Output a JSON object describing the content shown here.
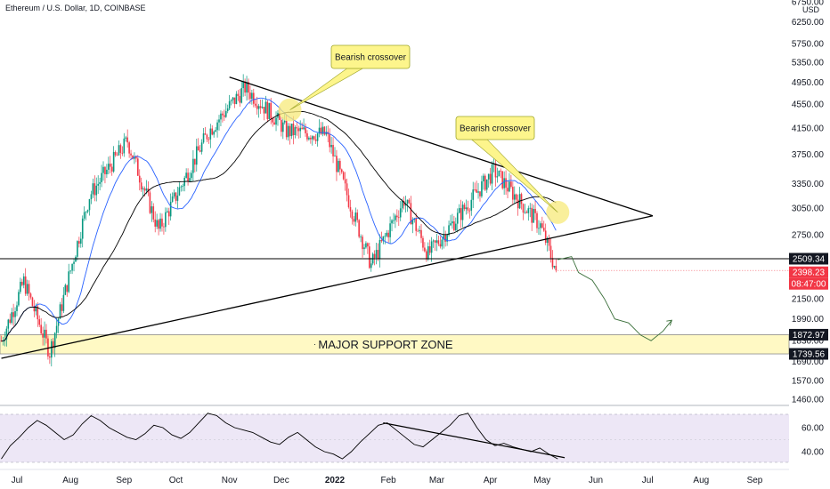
{
  "header": {
    "symbol_title": "Ethereum / U.S. Dollar, 1D, COINBASE"
  },
  "chart_data": {
    "type": "candlestick",
    "title": "Ethereum / U.S. Dollar, 1D, COINBASE",
    "y_unit": "USD",
    "y_axis_ticks": [
      6750,
      6250,
      5750,
      5350,
      4950,
      4550,
      4150,
      3750,
      3350,
      3050,
      2750,
      2509.34,
      2150,
      1990,
      1830,
      1690,
      1570,
      1460
    ],
    "x_axis_labels": [
      "Jul",
      "Aug",
      "Sep",
      "Oct",
      "Nov",
      "Dec",
      "2022",
      "Feb",
      "Mar",
      "Apr",
      "May",
      "Jun",
      "Jul",
      "Aug",
      "Sep"
    ],
    "price_path_approx": [
      {
        "date": "2021-06-22",
        "price": 1830
      },
      {
        "date": "2021-07-05",
        "price": 2300
      },
      {
        "date": "2021-07-20",
        "price": 1750
      },
      {
        "date": "2021-08-12",
        "price": 3200
      },
      {
        "date": "2021-09-03",
        "price": 3950
      },
      {
        "date": "2021-09-21",
        "price": 2800
      },
      {
        "date": "2021-10-20",
        "price": 4100
      },
      {
        "date": "2021-11-10",
        "price": 4850
      },
      {
        "date": "2021-11-28",
        "price": 4300
      },
      {
        "date": "2021-12-04",
        "price": 4100
      },
      {
        "date": "2021-12-27",
        "price": 4050
      },
      {
        "date": "2022-01-22",
        "price": 2450
      },
      {
        "date": "2022-02-10",
        "price": 3150
      },
      {
        "date": "2022-02-24",
        "price": 2550
      },
      {
        "date": "2022-04-03",
        "price": 3520
      },
      {
        "date": "2022-04-30",
        "price": 2850
      },
      {
        "date": "2022-05-09",
        "price": 2398.23
      }
    ],
    "price_labels": [
      {
        "text": "2509.34",
        "color": "#131722"
      },
      {
        "text": "2398.23",
        "color": "#f23645"
      },
      {
        "text": "08:47:00",
        "color": "#f23645"
      },
      {
        "text": "1872.97",
        "color": "#131722"
      },
      {
        "text": "1739.56",
        "color": "#131722"
      }
    ],
    "horizontal_level": 2509.34,
    "support_zone": {
      "label": "MAJOR SUPPORT ZONE",
      "low": 1739.56,
      "high": 1872.97,
      "color": "#fff9c4"
    },
    "callouts": [
      "Bearish crossover",
      "Bearish crossover"
    ],
    "rsi": {
      "ticks": [
        60.0,
        40.0
      ],
      "values": [
        34,
        45,
        52,
        60,
        66,
        62,
        56,
        50,
        54,
        63,
        70,
        66,
        60,
        56,
        52,
        50,
        55,
        62,
        60,
        54,
        51,
        56,
        64,
        72,
        70,
        64,
        60,
        58,
        56,
        52,
        48,
        46,
        52,
        56,
        50,
        44,
        40,
        38,
        34,
        40,
        48,
        55,
        62,
        64,
        58,
        52,
        46,
        44,
        50,
        56,
        62,
        70,
        72,
        60,
        50,
        45,
        47,
        44,
        42,
        40,
        43,
        38,
        34
      ]
    },
    "colors": {
      "up": "#089981",
      "down": "#f23645",
      "ma_fast": "#2962ff",
      "ma_slow": "#000000",
      "rsi_band": "#ede7f6",
      "rsi_line": "#000000"
    }
  }
}
